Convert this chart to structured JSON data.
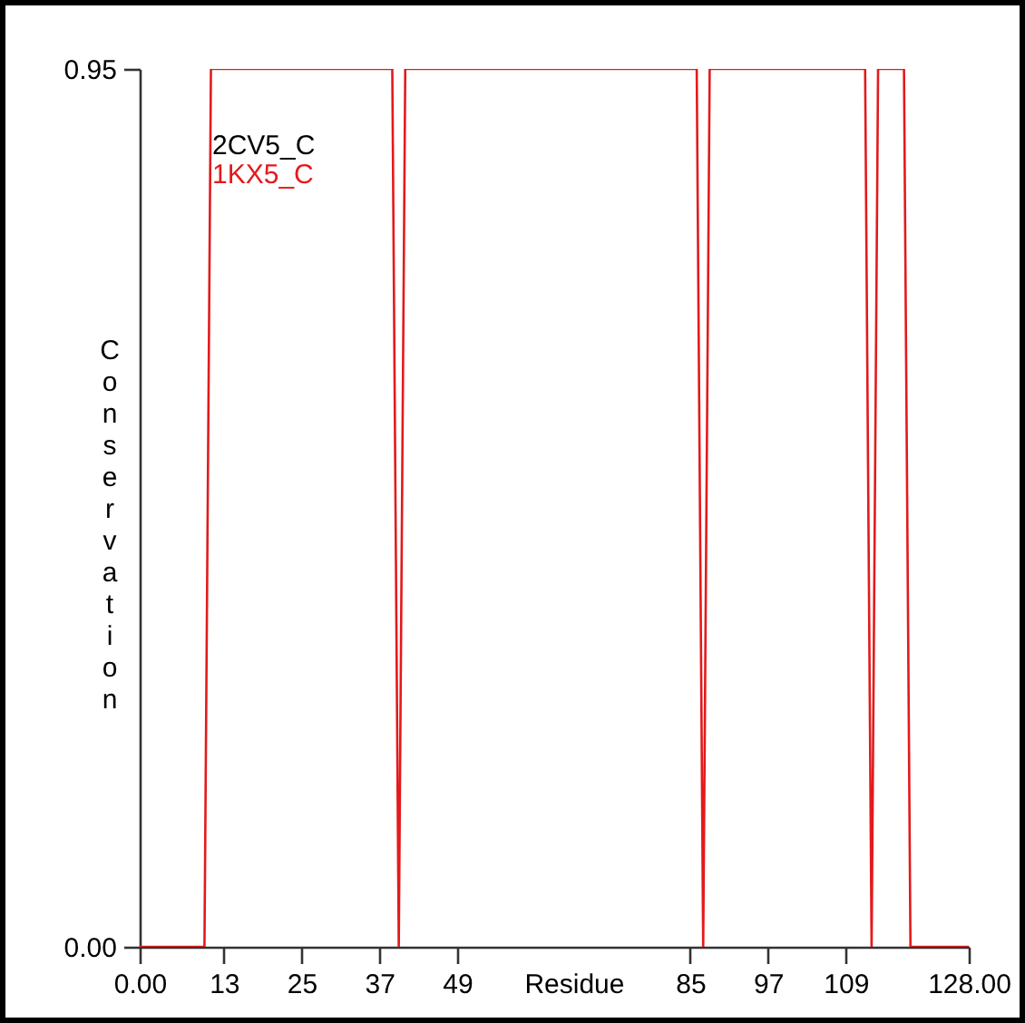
{
  "chart_data": {
    "type": "line",
    "xlabel": "Residue",
    "ylabel": "Conservation",
    "x": [
      0,
      10,
      11,
      39,
      40,
      41,
      86,
      87,
      88,
      112,
      113,
      114,
      118,
      119,
      128
    ],
    "series": [
      {
        "name": "2CV5_C",
        "color": "#000000",
        "values": [
          null,
          null,
          null,
          null,
          null,
          null,
          null,
          null,
          null,
          null,
          null,
          null,
          null,
          null,
          null
        ]
      },
      {
        "name": "1KX5_C",
        "color": "#e31a1c",
        "values": [
          0,
          0,
          0.95,
          0.95,
          0,
          0.95,
          0.95,
          0,
          0.95,
          0.95,
          0,
          0.95,
          0.95,
          0,
          0
        ]
      }
    ],
    "xlim": [
      0,
      128
    ],
    "xticks": [
      {
        "value": 0,
        "label": "0.00"
      },
      13,
      25,
      37,
      49,
      85,
      97,
      109,
      {
        "value": 128,
        "label": "128.00"
      }
    ],
    "ylim": [
      0,
      0.95
    ],
    "yticks": [
      {
        "value": 0,
        "label": "0.00"
      },
      0.95
    ],
    "grid": false,
    "legend": "top left"
  }
}
